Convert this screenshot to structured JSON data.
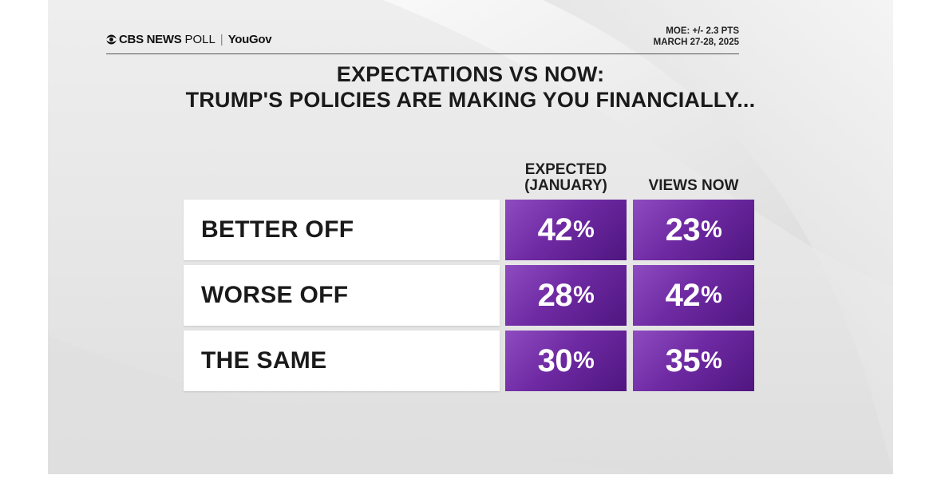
{
  "header": {
    "logo_brand": "CBS NEWS",
    "logo_poll": "POLL",
    "logo_partner": "YouGov",
    "moe": "MOE: +/- 2.3 PTS",
    "date": "MARCH 27-28, 2025"
  },
  "chart_data": {
    "type": "table",
    "title_line1": "EXPECTATIONS VS NOW:",
    "title_line2": "TRUMP'S POLICIES ARE MAKING YOU FINANCIALLY...",
    "columns": [
      "EXPECTED (JANUARY)",
      "VIEWS NOW"
    ],
    "categories": [
      "BETTER OFF",
      "WORSE OFF",
      "THE SAME"
    ],
    "series": [
      {
        "name": "EXPECTED (JANUARY)",
        "values": [
          42,
          28,
          30
        ]
      },
      {
        "name": "VIEWS NOW",
        "values": [
          23,
          42,
          35
        ]
      }
    ],
    "unit": "%",
    "accent_color": "#6f2aa3"
  },
  "cells": {
    "expected": [
      "42",
      "28",
      "30"
    ],
    "now": [
      "23",
      "42",
      "35"
    ],
    "pct": "%"
  },
  "col_heads": {
    "expected_line1": "EXPECTED",
    "expected_line2": "(JANUARY)",
    "now": "VIEWS NOW"
  }
}
